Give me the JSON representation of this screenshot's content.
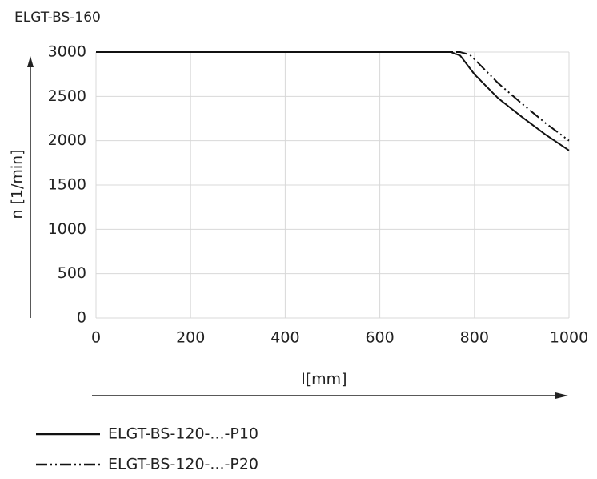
{
  "chart_data": {
    "type": "line",
    "title": "ELGT-BS-160",
    "x_label": "l[mm]",
    "y_label": "n [1/min]",
    "xlim": [
      0,
      1000
    ],
    "xticks": [
      0,
      200,
      400,
      600,
      800,
      1000
    ],
    "ylim": [
      0,
      3000
    ],
    "yticks": [
      0,
      500,
      1000,
      1500,
      2000,
      2500,
      3000
    ],
    "grid": true,
    "series": [
      {
        "name": "ELGT-BS-120-...-P10",
        "color": "#111111",
        "dash": "solid",
        "x": [
          0,
          750,
          770,
          800,
          850,
          900,
          950,
          1000
        ],
        "values": [
          3000,
          3000,
          2960,
          2750,
          2480,
          2270,
          2070,
          1890
        ]
      },
      {
        "name": "ELGT-BS-120-...-P20",
        "color": "#111111",
        "dash": "dash-dot-dot",
        "x": [
          0,
          770,
          790,
          800,
          850,
          900,
          950,
          1000
        ],
        "values": [
          3000,
          3000,
          2970,
          2920,
          2650,
          2420,
          2200,
          2000
        ]
      }
    ]
  }
}
